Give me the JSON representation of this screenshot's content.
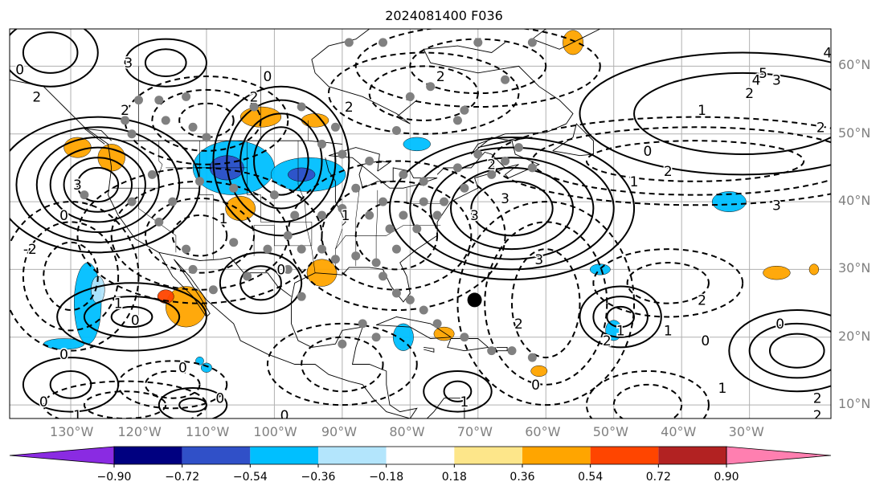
{
  "title": "2024081400 F036",
  "map": {
    "lon_range_deg": [
      -139,
      -18
    ],
    "lat_range_deg": [
      8,
      65.5
    ],
    "lon_gridlines_deg": [
      -130,
      -120,
      -110,
      -100,
      -90,
      -80,
      -70,
      -60,
      -50,
      -40,
      -30
    ],
    "lat_gridlines_deg": [
      10,
      20,
      30,
      40,
      50,
      60
    ],
    "lon_labels": [
      "130°W",
      "120°W",
      "110°W",
      "100°W",
      "90°W",
      "80°W",
      "70°W",
      "60°W",
      "50°W",
      "40°W",
      "30°W"
    ],
    "lat_labels": [
      "10°N",
      "20°N",
      "30°N",
      "40°N",
      "50°N",
      "60°N"
    ],
    "contour_labels": [
      {
        "text": "3",
        "lon": -121.5,
        "lat": 60.5
      },
      {
        "text": "0",
        "lon": -101,
        "lat": 58.5
      },
      {
        "text": "2",
        "lon": -122,
        "lat": 53.5
      },
      {
        "text": "2",
        "lon": -75.5,
        "lat": 58.5
      },
      {
        "text": "2",
        "lon": -103,
        "lat": 55.5
      },
      {
        "text": "0",
        "lon": -137.5,
        "lat": 59.5
      },
      {
        "text": "2",
        "lon": -135,
        "lat": 55.5
      },
      {
        "text": "2",
        "lon": -89,
        "lat": 54
      },
      {
        "text": "3",
        "lon": -129,
        "lat": 42.5
      },
      {
        "text": "0",
        "lon": -131,
        "lat": 38
      },
      {
        "text": "-2",
        "lon": -136,
        "lat": 33
      },
      {
        "text": "3",
        "lon": -70.5,
        "lat": 38
      },
      {
        "text": "3",
        "lon": -66,
        "lat": 40.5
      },
      {
        "text": "2",
        "lon": -68,
        "lat": 45.5
      },
      {
        "text": "0",
        "lon": -45,
        "lat": 47.5
      },
      {
        "text": "1",
        "lon": -47,
        "lat": 43
      },
      {
        "text": "2",
        "lon": -42,
        "lat": 44.5
      },
      {
        "text": "3",
        "lon": -26,
        "lat": 39.5
      },
      {
        "text": "5",
        "lon": -28,
        "lat": 59
      },
      {
        "text": "4",
        "lon": -29,
        "lat": 58
      },
      {
        "text": "3",
        "lon": -26,
        "lat": 58
      },
      {
        "text": "2",
        "lon": -30,
        "lat": 56
      },
      {
        "text": "1",
        "lon": -37,
        "lat": 53.5
      },
      {
        "text": "2",
        "lon": -19.5,
        "lat": 51
      },
      {
        "text": "4",
        "lon": -18.5,
        "lat": 62
      },
      {
        "text": "0",
        "lon": -120.5,
        "lat": 22.5
      },
      {
        "text": "1",
        "lon": -123,
        "lat": 25
      },
      {
        "text": "0",
        "lon": -99,
        "lat": 30
      },
      {
        "text": "3",
        "lon": -61,
        "lat": 31.5
      },
      {
        "text": "2",
        "lon": -64,
        "lat": 22
      },
      {
        "text": "0",
        "lon": -61.5,
        "lat": 13
      },
      {
        "text": "2",
        "lon": -51,
        "lat": 19.5
      },
      {
        "text": "1",
        "lon": -49,
        "lat": 21
      },
      {
        "text": "1",
        "lon": -42,
        "lat": 21
      },
      {
        "text": "0",
        "lon": -36.5,
        "lat": 19.5
      },
      {
        "text": "0",
        "lon": -25.5,
        "lat": 22
      },
      {
        "text": "1",
        "lon": -34,
        "lat": 12.5
      },
      {
        "text": "2",
        "lon": -37,
        "lat": 25.5
      },
      {
        "text": "2",
        "lon": -20,
        "lat": 11
      },
      {
        "text": "2",
        "lon": -20,
        "lat": 8.5
      },
      {
        "text": "0",
        "lon": -113.5,
        "lat": 15.5
      },
      {
        "text": "0",
        "lon": -134,
        "lat": 10.5
      },
      {
        "text": "1",
        "lon": -129,
        "lat": 8.5
      },
      {
        "text": "0",
        "lon": -131,
        "lat": 17.5
      },
      {
        "text": "0",
        "lon": -108,
        "lat": 11
      },
      {
        "text": "1",
        "lon": -72,
        "lat": 10.5
      },
      {
        "text": "0",
        "lon": -98.5,
        "lat": 8.5
      },
      {
        "text": "1",
        "lon": -107.5,
        "lat": 37.5
      },
      {
        "text": "1",
        "lon": -89.5,
        "lat": 38
      },
      {
        "text": "2",
        "lon": -13.5,
        "lat": 9
      }
    ],
    "marker": {
      "lon": -70.5,
      "lat": 25.5
    }
  },
  "colorbar": {
    "ticks": [
      "−0.90",
      "−0.72",
      "−0.54",
      "−0.36",
      "−0.18",
      "0.18",
      "0.36",
      "0.54",
      "0.72",
      "0.90"
    ],
    "colors": [
      "#8a2be2",
      "#000080",
      "#3050c8",
      "#00bfff",
      "#b3e5fc",
      "#ffffff",
      "#fde68a",
      "#ffa500",
      "#ff4500",
      "#b22222",
      "#ff7fb0"
    ]
  }
}
